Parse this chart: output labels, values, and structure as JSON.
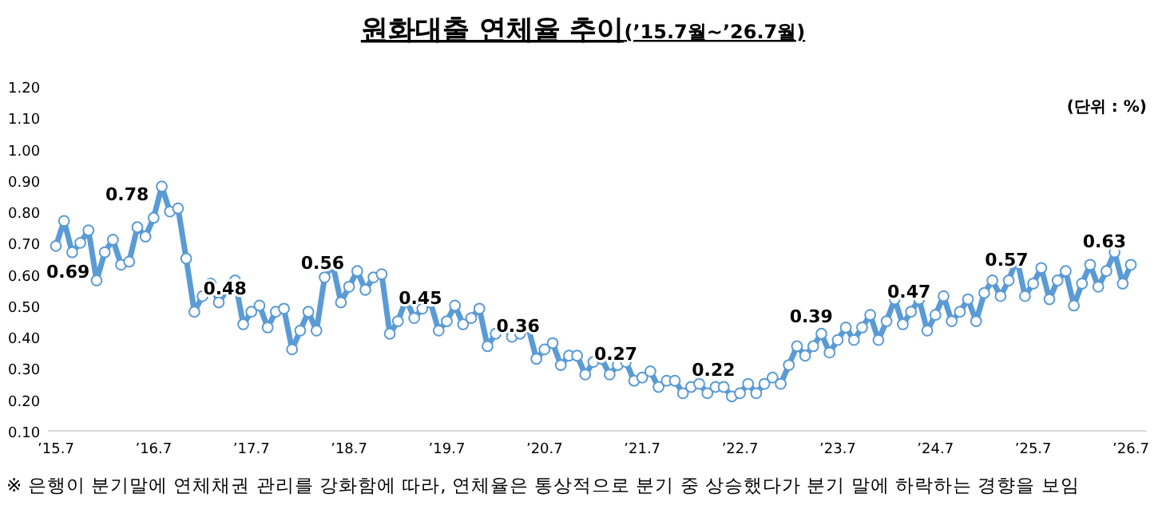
{
  "chart_data": {
    "type": "line",
    "title": "원화대출 연체율 추이",
    "subtitle": "(’15.7월~’26.7월)",
    "annotations": [
      "(단위 : %)",
      "※ 은행이 분기말에 연체채권 관리를 강화함에 따라, 연체율은 통상적으로 분기 중 상승했다가 분기 말에 하락하는 경향을 보임"
    ],
    "categories": [
      "’15.7",
      null,
      null,
      null,
      null,
      null,
      null,
      null,
      null,
      null,
      null,
      null,
      "’16.7",
      null,
      null,
      null,
      null,
      null,
      null,
      null,
      null,
      null,
      null,
      null,
      "’17.7",
      null,
      null,
      null,
      null,
      null,
      null,
      null,
      null,
      null,
      null,
      null,
      "’18.7",
      null,
      null,
      null,
      null,
      null,
      null,
      null,
      null,
      null,
      null,
      null,
      "’19.7",
      null,
      null,
      null,
      null,
      null,
      null,
      null,
      null,
      null,
      null,
      null,
      "’20.7",
      null,
      null,
      null,
      null,
      null,
      null,
      null,
      null,
      null,
      null,
      null,
      "’21.7",
      null,
      null,
      null,
      null,
      null,
      null,
      null,
      null,
      null,
      null,
      null,
      "’22.7",
      null,
      null,
      null,
      null,
      null,
      null,
      null,
      null,
      null,
      null,
      null,
      "’23.7",
      null,
      null,
      null,
      null,
      null,
      null,
      null,
      null,
      null,
      null,
      null,
      "’24.7",
      null,
      null,
      null,
      null,
      null,
      null,
      null,
      null,
      null,
      null,
      null,
      "’25.7",
      null,
      null,
      null,
      null,
      null,
      null,
      null,
      null,
      null,
      null,
      null,
      "’26.7"
    ],
    "series": [
      {
        "color": "#5b9bd5",
        "values": [
          0.69,
          0.77,
          0.67,
          0.7,
          0.74,
          0.58,
          0.67,
          0.71,
          0.63,
          0.64,
          0.75,
          0.72,
          0.78,
          0.88,
          0.8,
          0.81,
          0.65,
          0.48,
          0.53,
          0.57,
          0.51,
          0.55,
          0.58,
          0.44,
          0.48,
          0.5,
          0.43,
          0.48,
          0.49,
          0.36,
          0.42,
          0.48,
          0.42,
          0.59,
          0.63,
          0.51,
          0.56,
          0.61,
          0.55,
          0.59,
          0.6,
          0.41,
          0.45,
          0.52,
          0.46,
          0.49,
          0.51,
          0.42,
          0.45,
          0.5,
          0.44,
          0.46,
          0.49,
          0.37,
          0.41,
          0.43,
          0.4,
          0.41,
          0.43,
          0.33,
          0.36,
          0.38,
          0.31,
          0.34,
          0.34,
          0.28,
          0.32,
          0.33,
          0.28,
          0.31,
          0.32,
          0.26,
          0.27,
          0.29,
          0.24,
          0.26,
          0.26,
          0.22,
          0.24,
          0.25,
          0.22,
          0.24,
          0.24,
          0.21,
          0.22,
          0.25,
          0.22,
          0.25,
          0.27,
          0.25,
          0.31,
          0.37,
          0.34,
          0.37,
          0.41,
          0.35,
          0.39,
          0.43,
          0.39,
          0.43,
          0.47,
          0.39,
          0.45,
          0.52,
          0.44,
          0.48,
          0.52,
          0.42,
          0.47,
          0.53,
          0.45,
          0.48,
          0.52,
          0.45,
          0.54,
          0.58,
          0.53,
          0.58,
          0.65,
          0.53,
          0.57,
          0.62,
          0.52,
          0.58,
          0.61,
          0.5,
          0.57,
          0.63,
          0.56,
          0.61,
          0.67,
          0.57,
          0.63
        ],
        "value_labels": [
          "0.69",
          null,
          null,
          null,
          null,
          null,
          null,
          null,
          null,
          null,
          null,
          null,
          "0.78",
          null,
          null,
          null,
          null,
          null,
          null,
          null,
          null,
          null,
          null,
          null,
          "0.48",
          null,
          null,
          null,
          null,
          null,
          null,
          null,
          null,
          null,
          null,
          null,
          "0.56",
          null,
          null,
          null,
          null,
          null,
          null,
          null,
          null,
          null,
          null,
          null,
          "0.45",
          null,
          null,
          null,
          null,
          null,
          null,
          null,
          null,
          null,
          null,
          null,
          "0.36",
          null,
          null,
          null,
          null,
          null,
          null,
          null,
          null,
          null,
          null,
          null,
          "0.27",
          null,
          null,
          null,
          null,
          null,
          null,
          null,
          null,
          null,
          null,
          null,
          "0.22",
          null,
          null,
          null,
          null,
          null,
          null,
          null,
          null,
          null,
          null,
          null,
          "0.39",
          null,
          null,
          null,
          null,
          null,
          null,
          null,
          null,
          null,
          null,
          null,
          "0.47",
          null,
          null,
          null,
          null,
          null,
          null,
          null,
          null,
          null,
          null,
          null,
          "0.57",
          null,
          null,
          null,
          null,
          null,
          null,
          null,
          null,
          null,
          null,
          null,
          "0.63"
        ]
      }
    ],
    "ylim": [
      0.1,
      1.2
    ],
    "yticks": [
      {
        "value": 0.1,
        "label": "0.10"
      },
      {
        "value": 0.2,
        "label": "0.20"
      },
      {
        "value": 0.3,
        "label": "0.30"
      },
      {
        "value": 0.4,
        "label": "0.40"
      },
      {
        "value": 0.5,
        "label": "0.50"
      },
      {
        "value": 0.6,
        "label": "0.60"
      },
      {
        "value": 0.7,
        "label": "0.70"
      },
      {
        "value": 0.8,
        "label": "0.80"
      },
      {
        "value": 0.9,
        "label": "0.90"
      },
      {
        "value": 1.0,
        "label": "1.00"
      },
      {
        "value": 1.1,
        "label": "1.10"
      },
      {
        "value": 1.2,
        "label": "1.20"
      }
    ],
    "grid": false,
    "marker": "circle",
    "line_style": "solid"
  }
}
